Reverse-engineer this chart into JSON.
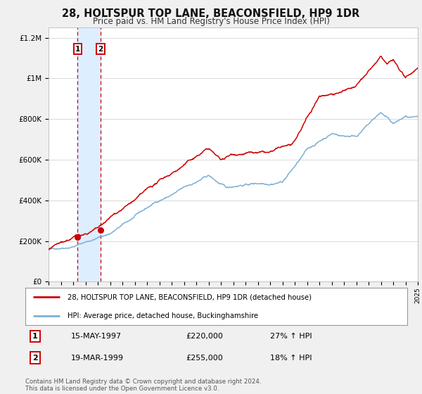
{
  "title": "28, HOLTSPUR TOP LANE, BEACONSFIELD, HP9 1DR",
  "subtitle": "Price paid vs. HM Land Registry's House Price Index (HPI)",
  "ylim": [
    0,
    1250000
  ],
  "yticks": [
    0,
    200000,
    400000,
    600000,
    800000,
    1000000,
    1200000
  ],
  "ytick_labels": [
    "£0",
    "£200K",
    "£400K",
    "£600K",
    "£800K",
    "£1M",
    "£1.2M"
  ],
  "sale1_date": 1997.37,
  "sale1_price": 220000,
  "sale1_label": "15-MAY-1997",
  "sale1_amount": "£220,000",
  "sale1_hpi": "27% ↑ HPI",
  "sale2_date": 1999.21,
  "sale2_price": 255000,
  "sale2_label": "19-MAR-1999",
  "sale2_amount": "£255,000",
  "sale2_hpi": "18% ↑ HPI",
  "red_line_color": "#cc0000",
  "blue_line_color": "#7db0d5",
  "shaded_color": "#ddeeff",
  "legend1": "28, HOLTSPUR TOP LANE, BEACONSFIELD, HP9 1DR (detached house)",
  "legend2": "HPI: Average price, detached house, Buckinghamshire",
  "footer1": "Contains HM Land Registry data © Crown copyright and database right 2024.",
  "footer2": "This data is licensed under the Open Government Licence v3.0.",
  "background_color": "#f0f0f0",
  "plot_bg_color": "#ffffff"
}
